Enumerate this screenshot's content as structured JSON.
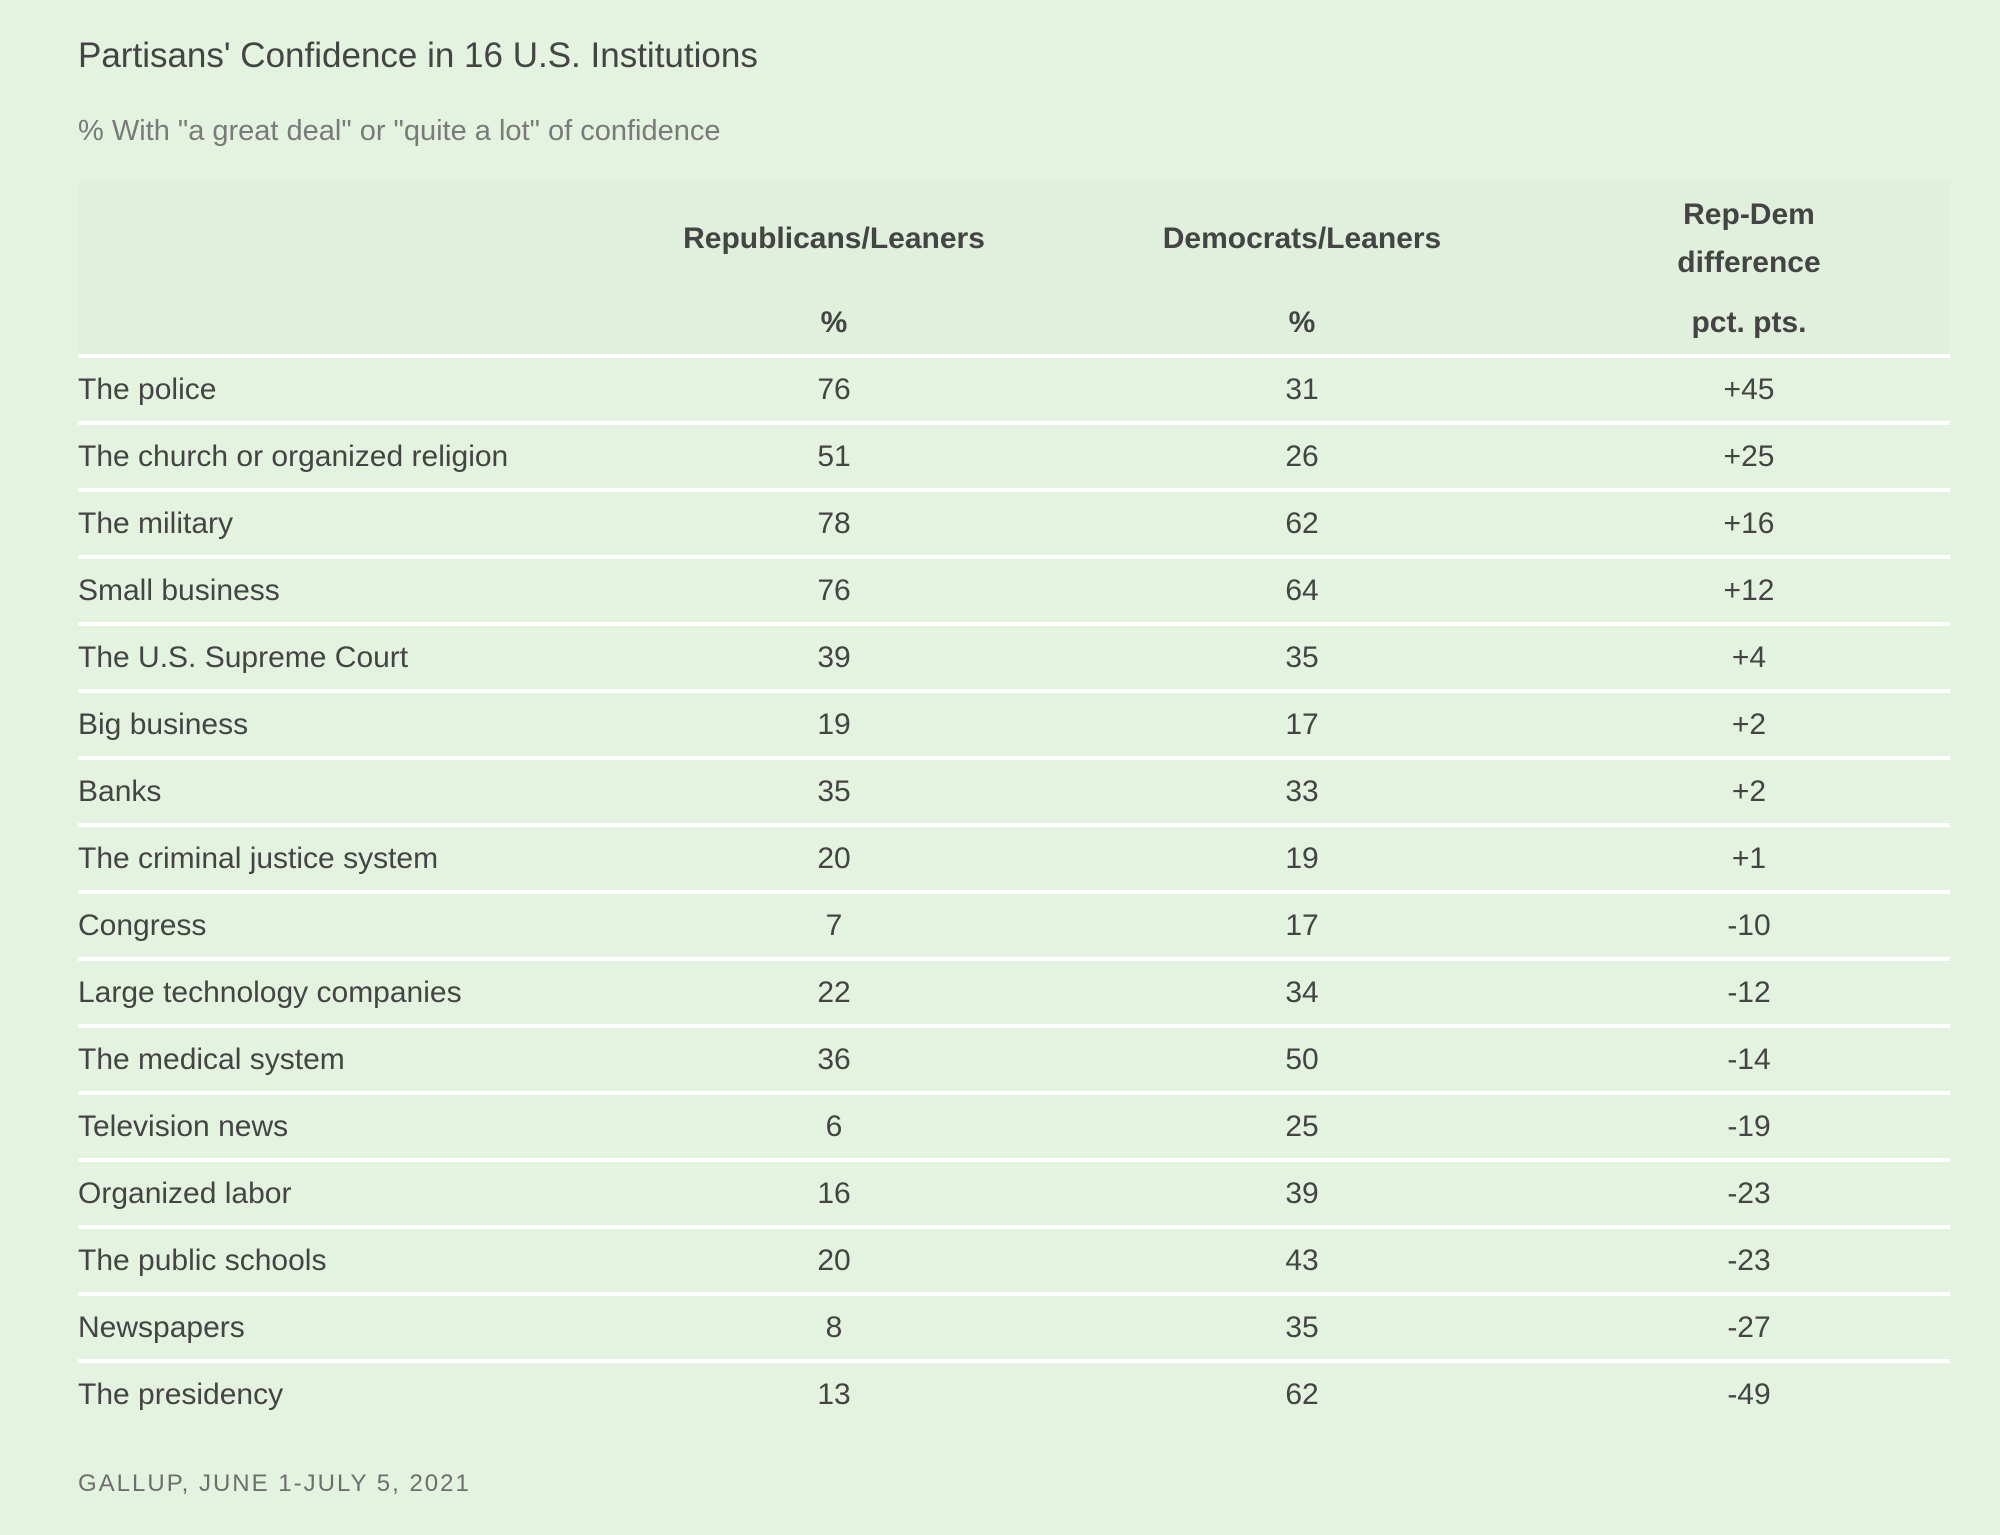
{
  "chart_data": {
    "type": "table",
    "title": "Partisans' Confidence in 16 U.S. Institutions",
    "subtitle": "% With \"a great deal\" or \"quite a lot\" of confidence",
    "columns": [
      {
        "name": "",
        "unit": ""
      },
      {
        "name": "Republicans/Leaners",
        "unit": "%"
      },
      {
        "name": "Democrats/Leaners",
        "unit": "%"
      },
      {
        "name_line1": "Rep-Dem",
        "name_line2": "difference",
        "unit": "pct. pts."
      }
    ],
    "rows": [
      {
        "institution": "The police",
        "rep": "76",
        "dem": "31",
        "diff": "+45"
      },
      {
        "institution": "The church or organized religion",
        "rep": "51",
        "dem": "26",
        "diff": "+25"
      },
      {
        "institution": "The military",
        "rep": "78",
        "dem": "62",
        "diff": "+16"
      },
      {
        "institution": "Small business",
        "rep": "76",
        "dem": "64",
        "diff": "+12"
      },
      {
        "institution": "The U.S. Supreme Court",
        "rep": "39",
        "dem": "35",
        "diff": "+4"
      },
      {
        "institution": "Big business",
        "rep": "19",
        "dem": "17",
        "diff": "+2"
      },
      {
        "institution": "Banks",
        "rep": "35",
        "dem": "33",
        "diff": "+2"
      },
      {
        "institution": "The criminal justice system",
        "rep": "20",
        "dem": "19",
        "diff": "+1"
      },
      {
        "institution": "Congress",
        "rep": "7",
        "dem": "17",
        "diff": "-10"
      },
      {
        "institution": "Large technology companies",
        "rep": "22",
        "dem": "34",
        "diff": "-12"
      },
      {
        "institution": "The medical system",
        "rep": "36",
        "dem": "50",
        "diff": "-14"
      },
      {
        "institution": "Television news",
        "rep": "6",
        "dem": "25",
        "diff": "-19"
      },
      {
        "institution": "Organized labor",
        "rep": "16",
        "dem": "39",
        "diff": "-23"
      },
      {
        "institution": "The public schools",
        "rep": "20",
        "dem": "43",
        "diff": "-23"
      },
      {
        "institution": "Newspapers",
        "rep": "8",
        "dem": "35",
        "diff": "-27"
      },
      {
        "institution": "The presidency",
        "rep": "13",
        "dem": "62",
        "diff": "-49"
      }
    ],
    "source": "GALLUP, JUNE 1-JULY 5, 2021"
  },
  "colors": {
    "background": "#e4f2e0",
    "row_divider": "#ffffff",
    "text": "#444444",
    "muted_text": "#7a7a7a"
  }
}
